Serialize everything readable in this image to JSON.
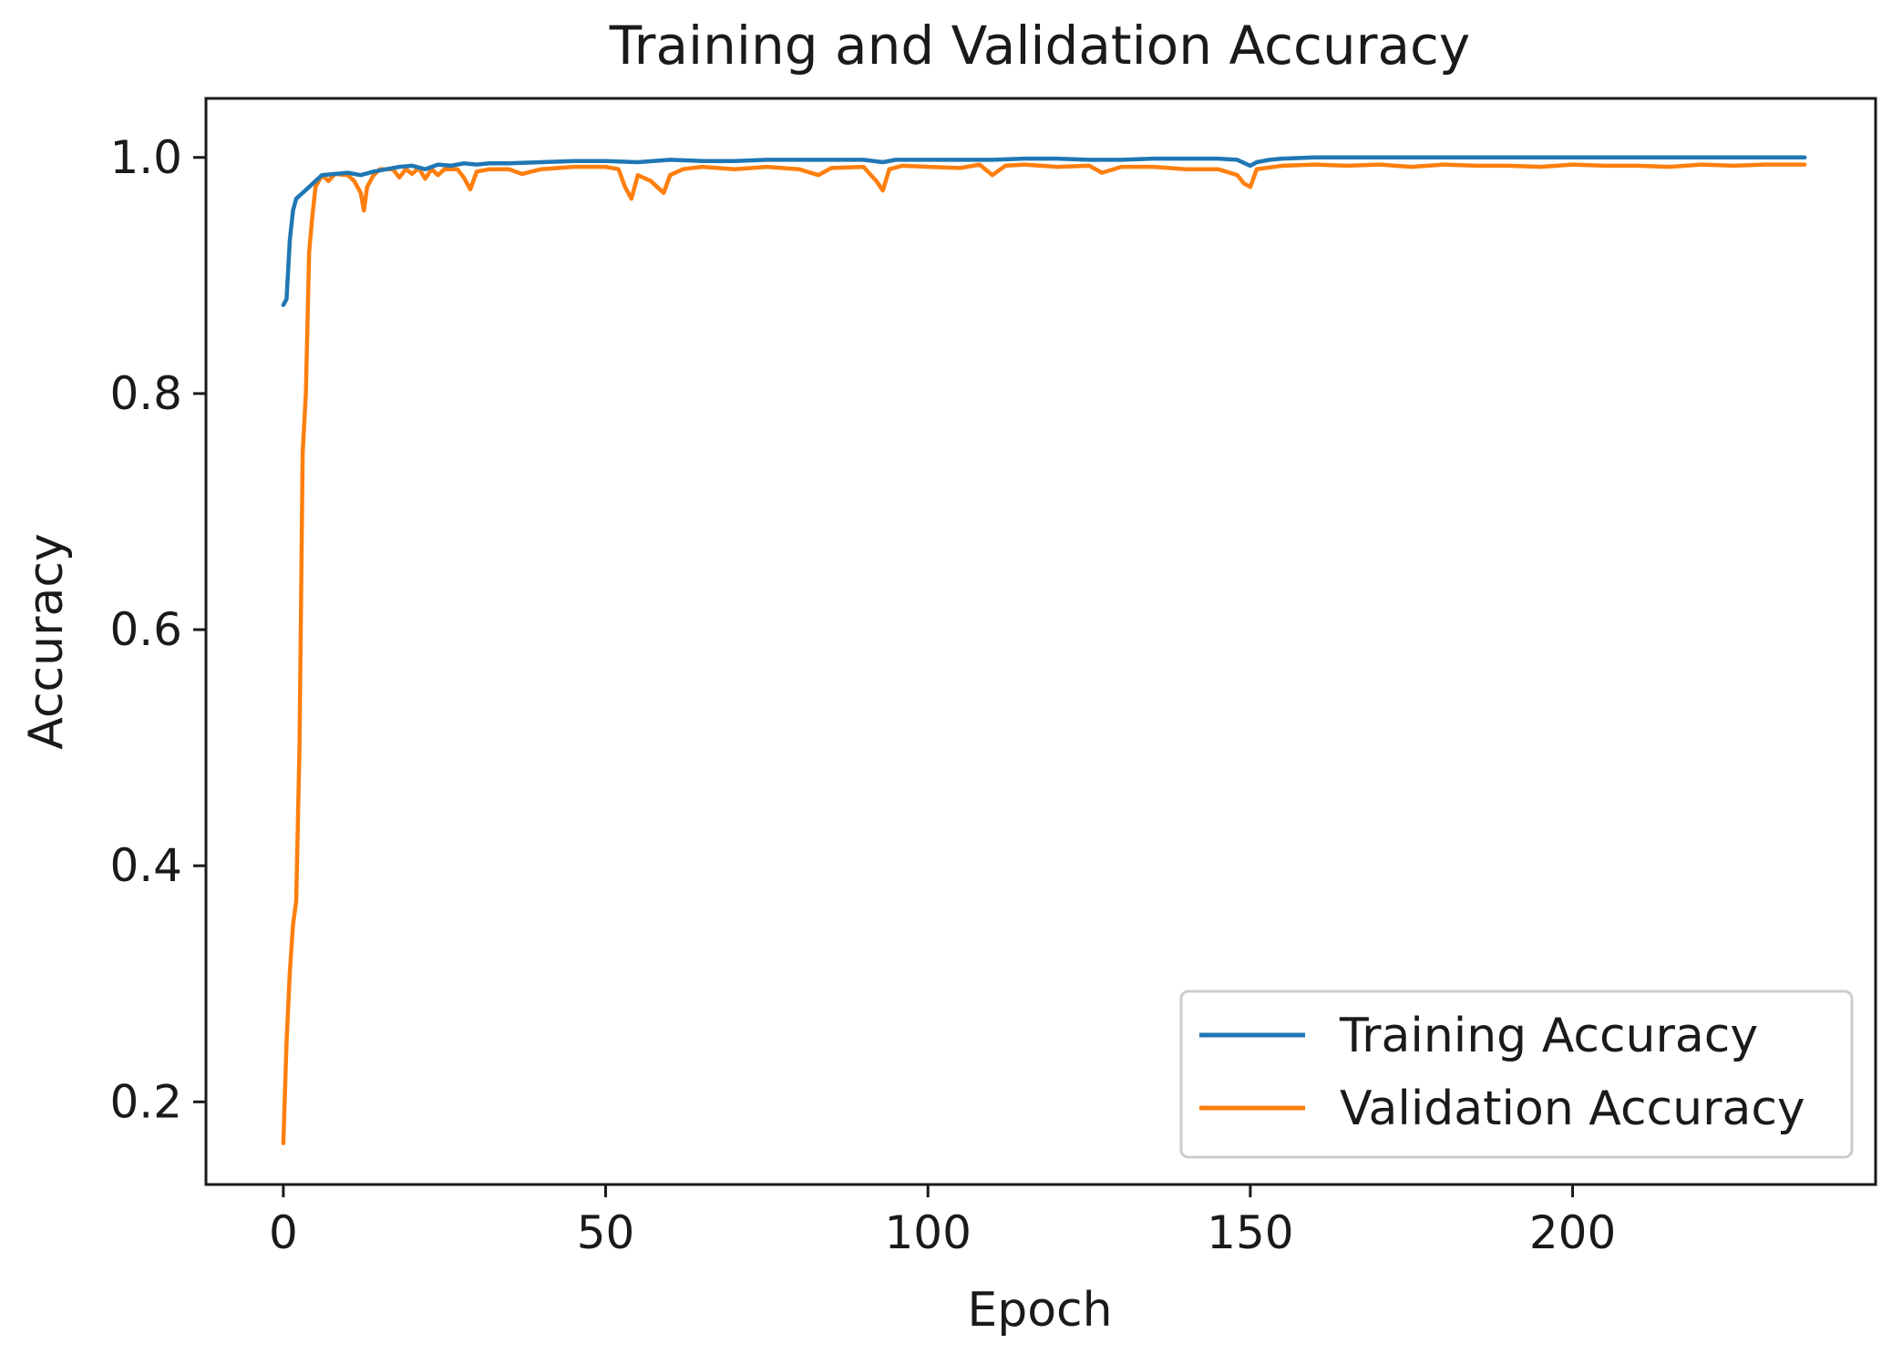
{
  "chart_data": {
    "type": "line",
    "title": "Training and Validation Accuracy",
    "xlabel": "Epoch",
    "ylabel": "Accuracy",
    "xlim": [
      -12,
      247
    ],
    "ylim": [
      0.13,
      1.05
    ],
    "x_ticks": [
      0,
      50,
      100,
      150,
      200
    ],
    "x_tick_labels": [
      "0",
      "50",
      "100",
      "150",
      "200"
    ],
    "y_ticks": [
      0.2,
      0.4,
      0.6,
      0.8,
      1.0
    ],
    "y_tick_labels": [
      "0.2",
      "0.4",
      "0.6",
      "0.8",
      "1.0"
    ],
    "grid": false,
    "legend_position": "lower-right",
    "series": [
      {
        "name": "Training Accuracy",
        "color": "#1f77b4",
        "points": [
          [
            0,
            0.875
          ],
          [
            0.5,
            0.88
          ],
          [
            1,
            0.93
          ],
          [
            1.5,
            0.955
          ],
          [
            2,
            0.965
          ],
          [
            3,
            0.97
          ],
          [
            4,
            0.975
          ],
          [
            5,
            0.98
          ],
          [
            6,
            0.985
          ],
          [
            8,
            0.986
          ],
          [
            10,
            0.987
          ],
          [
            12,
            0.985
          ],
          [
            14,
            0.988
          ],
          [
            16,
            0.99
          ],
          [
            18,
            0.992
          ],
          [
            20,
            0.993
          ],
          [
            22,
            0.99
          ],
          [
            24,
            0.994
          ],
          [
            26,
            0.993
          ],
          [
            28,
            0.995
          ],
          [
            30,
            0.994
          ],
          [
            32,
            0.995
          ],
          [
            35,
            0.995
          ],
          [
            40,
            0.996
          ],
          [
            45,
            0.997
          ],
          [
            50,
            0.997
          ],
          [
            55,
            0.996
          ],
          [
            60,
            0.998
          ],
          [
            65,
            0.997
          ],
          [
            70,
            0.997
          ],
          [
            75,
            0.998
          ],
          [
            80,
            0.998
          ],
          [
            85,
            0.998
          ],
          [
            90,
            0.998
          ],
          [
            93,
            0.996
          ],
          [
            95,
            0.998
          ],
          [
            100,
            0.998
          ],
          [
            105,
            0.998
          ],
          [
            110,
            0.998
          ],
          [
            115,
            0.999
          ],
          [
            120,
            0.999
          ],
          [
            125,
            0.998
          ],
          [
            130,
            0.998
          ],
          [
            135,
            0.999
          ],
          [
            140,
            0.999
          ],
          [
            145,
            0.999
          ],
          [
            148,
            0.998
          ],
          [
            150,
            0.993
          ],
          [
            151,
            0.996
          ],
          [
            153,
            0.998
          ],
          [
            155,
            0.999
          ],
          [
            160,
            1.0
          ],
          [
            170,
            1.0
          ],
          [
            180,
            1.0
          ],
          [
            190,
            1.0
          ],
          [
            200,
            1.0
          ],
          [
            210,
            1.0
          ],
          [
            220,
            1.0
          ],
          [
            230,
            1.0
          ],
          [
            236,
            1.0
          ]
        ]
      },
      {
        "name": "Validation Accuracy",
        "color": "#ff7f0e",
        "points": [
          [
            0,
            0.165
          ],
          [
            0.5,
            0.25
          ],
          [
            1,
            0.31
          ],
          [
            1.5,
            0.35
          ],
          [
            2,
            0.37
          ],
          [
            2.5,
            0.5
          ],
          [
            3,
            0.75
          ],
          [
            3.5,
            0.8
          ],
          [
            4,
            0.92
          ],
          [
            4.5,
            0.95
          ],
          [
            5,
            0.975
          ],
          [
            6,
            0.985
          ],
          [
            7,
            0.98
          ],
          [
            8,
            0.986
          ],
          [
            10,
            0.985
          ],
          [
            11,
            0.98
          ],
          [
            12,
            0.97
          ],
          [
            12.5,
            0.955
          ],
          [
            13,
            0.975
          ],
          [
            14,
            0.985
          ],
          [
            15,
            0.99
          ],
          [
            17,
            0.99
          ],
          [
            18,
            0.983
          ],
          [
            19,
            0.99
          ],
          [
            20,
            0.986
          ],
          [
            21,
            0.991
          ],
          [
            22,
            0.982
          ],
          [
            23,
            0.99
          ],
          [
            24,
            0.985
          ],
          [
            25,
            0.99
          ],
          [
            27,
            0.99
          ],
          [
            28,
            0.983
          ],
          [
            29,
            0.973
          ],
          [
            30,
            0.988
          ],
          [
            32,
            0.99
          ],
          [
            35,
            0.99
          ],
          [
            37,
            0.986
          ],
          [
            40,
            0.99
          ],
          [
            45,
            0.992
          ],
          [
            50,
            0.992
          ],
          [
            52,
            0.99
          ],
          [
            53,
            0.975
          ],
          [
            54,
            0.965
          ],
          [
            55,
            0.985
          ],
          [
            57,
            0.98
          ],
          [
            58,
            0.975
          ],
          [
            59,
            0.97
          ],
          [
            60,
            0.985
          ],
          [
            62,
            0.99
          ],
          [
            65,
            0.992
          ],
          [
            70,
            0.99
          ],
          [
            75,
            0.992
          ],
          [
            80,
            0.99
          ],
          [
            83,
            0.985
          ],
          [
            85,
            0.991
          ],
          [
            90,
            0.992
          ],
          [
            92,
            0.98
          ],
          [
            93,
            0.972
          ],
          [
            94,
            0.99
          ],
          [
            96,
            0.993
          ],
          [
            100,
            0.992
          ],
          [
            105,
            0.991
          ],
          [
            108,
            0.994
          ],
          [
            110,
            0.985
          ],
          [
            112,
            0.993
          ],
          [
            115,
            0.994
          ],
          [
            120,
            0.992
          ],
          [
            125,
            0.993
          ],
          [
            127,
            0.987
          ],
          [
            130,
            0.992
          ],
          [
            135,
            0.992
          ],
          [
            140,
            0.99
          ],
          [
            145,
            0.99
          ],
          [
            148,
            0.985
          ],
          [
            149,
            0.978
          ],
          [
            150,
            0.975
          ],
          [
            151,
            0.99
          ],
          [
            155,
            0.993
          ],
          [
            160,
            0.994
          ],
          [
            165,
            0.993
          ],
          [
            170,
            0.994
          ],
          [
            175,
            0.992
          ],
          [
            180,
            0.994
          ],
          [
            185,
            0.993
          ],
          [
            190,
            0.993
          ],
          [
            195,
            0.992
          ],
          [
            200,
            0.994
          ],
          [
            205,
            0.993
          ],
          [
            210,
            0.993
          ],
          [
            215,
            0.992
          ],
          [
            220,
            0.994
          ],
          [
            225,
            0.993
          ],
          [
            230,
            0.994
          ],
          [
            236,
            0.994
          ]
        ]
      }
    ]
  }
}
